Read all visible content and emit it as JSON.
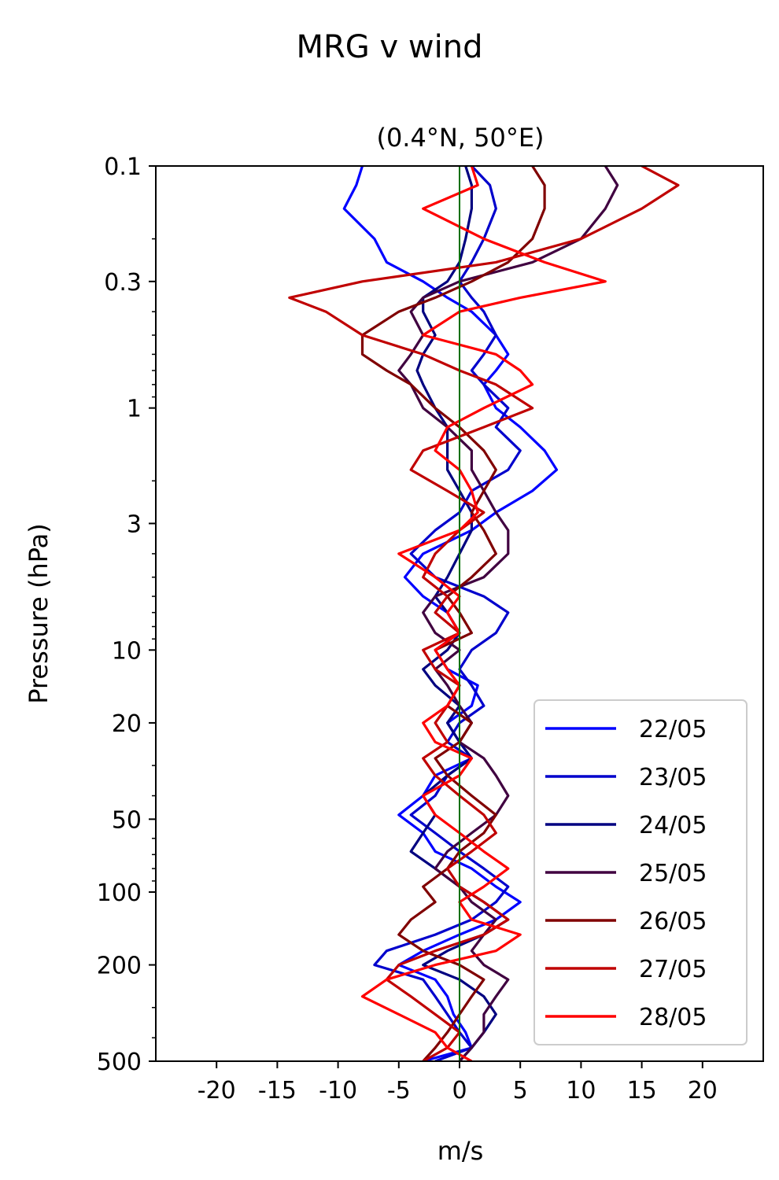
{
  "suptitle": "MRG v wind",
  "chart_data": {
    "type": "line",
    "title": "(0.4°N, 50°E)",
    "xlabel": "m/s",
    "ylabel": "Pressure (hPa)",
    "xlim": [
      -25,
      25
    ],
    "ylim": [
      500,
      0.1
    ],
    "yscale": "log",
    "grid": false,
    "legend_position": "lower-right",
    "x_ticks": [
      -20,
      -15,
      -10,
      -5,
      0,
      5,
      10,
      15,
      20
    ],
    "x_tick_labels": [
      "-20",
      "-15",
      "-10",
      "-5",
      "0",
      "5",
      "10",
      "15",
      "20"
    ],
    "y_ticks": [
      0.1,
      0.3,
      1,
      3,
      10,
      20,
      50,
      100,
      200,
      500
    ],
    "y_tick_labels": [
      "0.1",
      "0.3",
      "1",
      "3",
      "10",
      "20",
      "50",
      "100",
      "200",
      "500"
    ],
    "zero_line": {
      "x": 0,
      "color": "#007000"
    },
    "pressure_levels": [
      0.1,
      0.12,
      0.15,
      0.2,
      0.25,
      0.3,
      0.35,
      0.4,
      0.5,
      0.6,
      0.7,
      0.8,
      1.0,
      1.2,
      1.5,
      1.8,
      2.2,
      2.7,
      3.2,
      4.0,
      5.0,
      6.0,
      7.0,
      8.5,
      10,
      12,
      14,
      17,
      20,
      24,
      28,
      33,
      40,
      48,
      57,
      68,
      80,
      95,
      110,
      130,
      150,
      175,
      200,
      230,
      270,
      320,
      380,
      440,
      500
    ],
    "series": [
      {
        "name": "22/05",
        "color": "#0000ff",
        "values": [
          -8,
          -8.5,
          -9.5,
          -7,
          -6,
          -3,
          -1,
          1,
          3,
          4,
          3,
          2,
          3,
          5,
          7,
          8,
          6,
          3,
          1,
          -3,
          -4.5,
          -3,
          -1,
          0,
          -2,
          -1,
          1.5,
          1,
          -1,
          0,
          1,
          -2,
          -3,
          -5,
          -3,
          -2,
          1,
          3,
          5,
          3,
          0,
          -3,
          -5,
          -2,
          -1,
          -0.5,
          0.5,
          1,
          -3
        ]
      },
      {
        "name": "23/05",
        "color": "#0000cc",
        "values": [
          1,
          2.5,
          3,
          2,
          1,
          0,
          1,
          2,
          3,
          2,
          1,
          2,
          4,
          3,
          5,
          4,
          1,
          0,
          -2,
          -4,
          -2,
          2,
          4,
          3,
          1,
          0,
          1,
          2,
          0,
          -1,
          1,
          -1,
          -2,
          -4,
          -2,
          0,
          2,
          4,
          3,
          1,
          -2,
          -6,
          -7,
          -3,
          -2,
          -1,
          0,
          1,
          -2
        ]
      },
      {
        "name": "24/05",
        "color": "#000080",
        "values": [
          0.5,
          1,
          1,
          0.5,
          0,
          -1,
          -3,
          -3,
          -2,
          -3,
          -3.5,
          -3,
          -2,
          -1,
          -1,
          -1,
          0,
          1,
          1,
          0,
          -1,
          -2,
          -1,
          0,
          -1,
          -3,
          -2,
          0,
          -1,
          0,
          1,
          -1,
          -3,
          -2,
          -3,
          -4,
          -2,
          0,
          2,
          4,
          2,
          -1,
          -3,
          0,
          2,
          3,
          2,
          1,
          0
        ]
      },
      {
        "name": "25/05",
        "color": "#400040",
        "values": [
          12,
          13,
          12,
          10,
          6,
          0,
          -3,
          -4,
          -3,
          -4,
          -5,
          -4,
          -3,
          -1,
          1,
          1,
          2,
          3,
          4,
          4,
          2,
          -2,
          -3,
          -2,
          0,
          -2,
          -1,
          0,
          1,
          0,
          2,
          3,
          4,
          3,
          1,
          -1,
          -2,
          0,
          1,
          3,
          2,
          1,
          2,
          4,
          3,
          2,
          2,
          1,
          0
        ]
      },
      {
        "name": "26/05",
        "color": "#800000",
        "values": [
          6,
          7,
          7,
          6,
          4,
          1,
          -2,
          -5,
          -8,
          -8,
          -6,
          -4,
          -2,
          0,
          2,
          3,
          2,
          1,
          2,
          3,
          1,
          -1,
          0,
          1,
          -2,
          -1,
          0,
          -1,
          1,
          0,
          -2,
          -1,
          1,
          3,
          2,
          0,
          -1,
          -3,
          -2,
          -4,
          -5,
          -3,
          0,
          2,
          1,
          0,
          -1,
          -2,
          -3
        ]
      },
      {
        "name": "27/05",
        "color": "#c00000",
        "values": [
          15,
          18,
          15,
          10,
          3,
          -8,
          -14,
          -11,
          -8,
          -3,
          0,
          3,
          6,
          2,
          -3,
          -4,
          -1,
          2,
          0,
          -2,
          -3,
          -1,
          -2,
          0,
          -3,
          -2,
          0,
          -1,
          -2,
          -1,
          -3,
          -2,
          0,
          2,
          3,
          1,
          -1,
          0,
          2,
          4,
          2,
          -2,
          -5,
          -6,
          -4,
          -2,
          0,
          -1,
          -3
        ]
      },
      {
        "name": "28/05",
        "color": "#ff0000",
        "values": [
          1,
          1.5,
          -3,
          2,
          7,
          12,
          5,
          0,
          -3,
          3,
          5,
          6,
          2,
          -1,
          -2,
          0,
          1,
          1.5,
          0,
          -5,
          -2,
          0,
          -1,
          0,
          -2,
          -1,
          0,
          -1,
          -3,
          -2,
          1,
          0,
          -3,
          -2,
          0,
          2,
          4,
          2,
          0,
          1,
          5,
          3,
          -2,
          -6,
          -8,
          -5,
          -2,
          -1,
          1
        ]
      }
    ]
  }
}
